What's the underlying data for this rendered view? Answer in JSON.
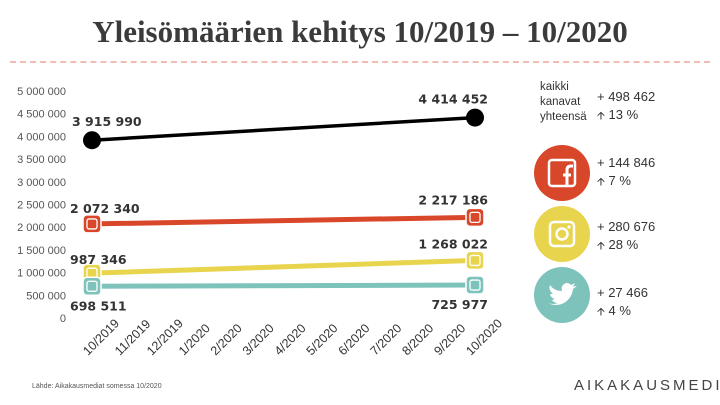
{
  "title": "Yleisömäärien kehitys 10/2019 – 10/2020",
  "source": "Lähde: Aikakausmediat somessa 10/2020",
  "brand": "AIKAKAUSMEDIA",
  "summary": {
    "label_lines": [
      "kaikki",
      "kanavat",
      "yhteensä"
    ],
    "change": "+ 498 462",
    "percent": "13 %"
  },
  "channel_stats": [
    {
      "channel": "facebook",
      "change": "+ 144 846",
      "percent": "7 %"
    },
    {
      "channel": "instagram",
      "change": "+ 280 676",
      "percent": "28 %"
    },
    {
      "channel": "twitter",
      "change": "+ 27 466",
      "percent": "4 %"
    }
  ],
  "icons": {
    "facebook": "facebook-icon",
    "instagram": "instagram-icon",
    "twitter": "twitter-icon",
    "up_arrow": "up-arrow-icon"
  },
  "colors": {
    "total": "#000000",
    "facebook": "#d9472b",
    "instagram": "#e8d44d",
    "twitter": "#7ec3bb",
    "text": "#333333"
  },
  "chart_data": {
    "type": "line",
    "title": "Yleisömäärien kehitys 10/2019 – 10/2020",
    "categories": [
      "10/2019",
      "11/2019",
      "12/2019",
      "1/2020",
      "2/2020",
      "3/2020",
      "4/2020",
      "5/2020",
      "6/2020",
      "7/2020",
      "8/2020",
      "9/2020",
      "10/2020"
    ],
    "ylim": [
      0,
      5000000
    ],
    "yticks": [
      "0",
      "500 000",
      "1 000 000",
      "1 500 000",
      "2 000 000",
      "2 500 000",
      "3 000 000",
      "3 500 000",
      "4 000 000",
      "4 500 000",
      "5 000 000"
    ],
    "series": [
      {
        "name": "kaikki kanavat yhteensä",
        "key": "total",
        "start": 3915990,
        "end": 4414452,
        "start_label": "3 915 990",
        "end_label": "4 414 452"
      },
      {
        "name": "Facebook",
        "key": "facebook",
        "start": 2072340,
        "end": 2217186,
        "start_label": "2 072 340",
        "end_label": "2 217 186"
      },
      {
        "name": "Instagram",
        "key": "instagram",
        "start": 987346,
        "end": 1268022,
        "start_label": "987 346",
        "end_label": "1 268 022"
      },
      {
        "name": "Twitter",
        "key": "twitter",
        "start": 698511,
        "end": 725977,
        "start_label": "698 511",
        "end_label": "725 977"
      }
    ]
  }
}
